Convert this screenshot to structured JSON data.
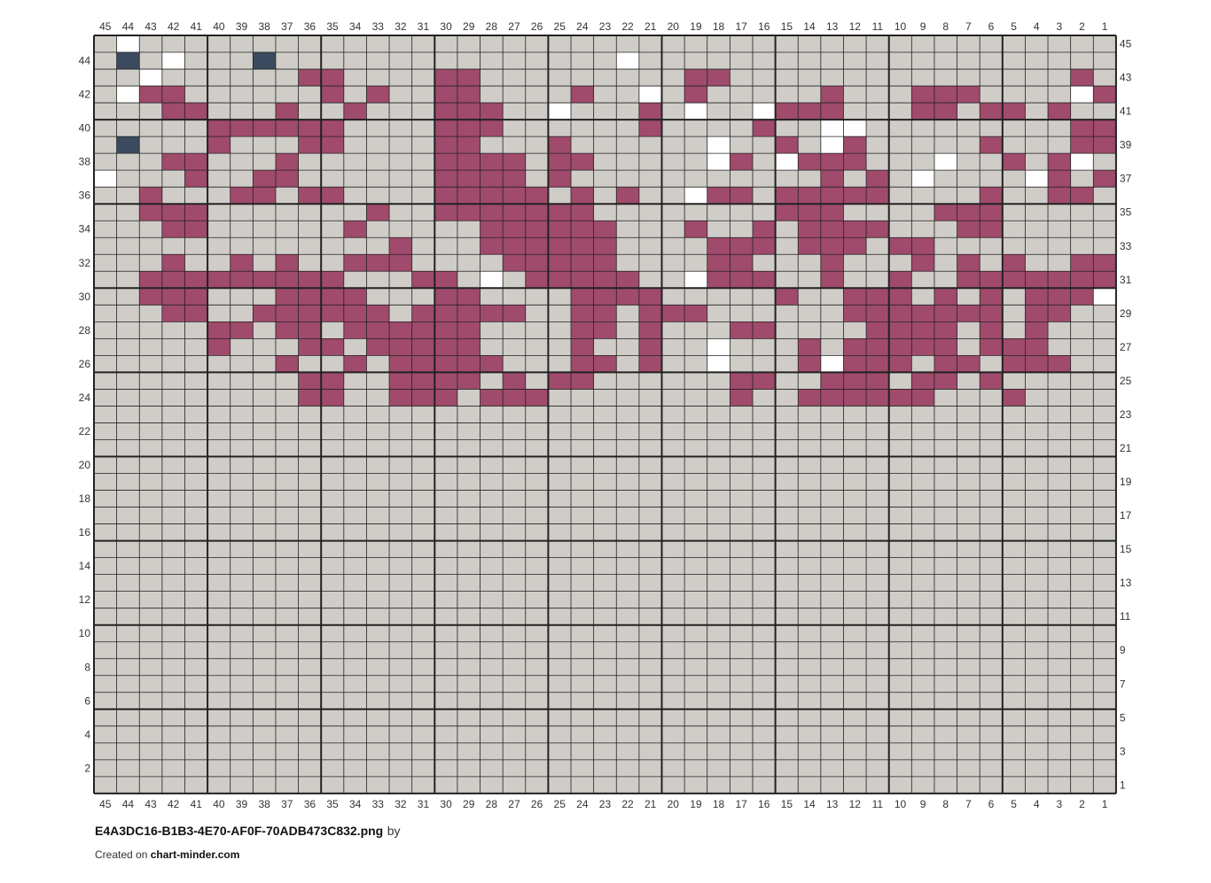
{
  "chart": {
    "columns": 45,
    "rows": 45,
    "col_numbering": "right-to-left",
    "row_numbering": "bottom-to-top",
    "colors": {
      "B": "#d0cdc8",
      "M": "#a04a6c",
      "W": "#ffffff",
      "N": "#3b4a5e"
    },
    "grid_line_color": "#222222",
    "major_line_every": 5,
    "axis_label_color": "#333333",
    "row_cells": [
      "BWBBBBBBBBBBBBBBBBBBBBBBBBBBBBBBBBBBBBBBBBBBB",
      "BNBWBBBNBBBBBBBBBBBBBBBWBBBBBBBBBBBBBBBBBBBBB",
      "BBWBBBBBBMMBBBBMMBBBBBBBBBMMBBBBBBBBBBBBBBBMB",
      "BWMMBBBBBBMBMBBMMBBBBMBBWBMBBBBBMBBBMMMBBBBWM",
      "BBBMMBBBMBBMBBBMMMBBWBBBMBWBBWMMMBBBMMBMMBMBB",
      "BBBBBMMMMMMBBBBMMMBBBBBBMBBBBMBBWWBBBBBBBBBMM",
      "BNBBBMBBBMMBBBBMMBBBMBBBBBBWBBMBWMBBBBBMBBBMM",
      "BBBMMBBBMBBBBBBMMMMBMMBBBBBWMBWMMMBBBWBBMBMWB",
      "WBBBMBBMMBBBBBBMMMMBMBBBBBBBBBBBMBMBWBBBBWMBM",
      "BBMBBBMMBMMBBBBMMMMMBMBMBBWMMBMMMMMBBBBMBBMMB",
      "BBMMMBBBBBBBMBBMMMMMMMBBBBBBBBMMMBBBBMMMBBBBB",
      "BBBMMBBBBBBMBBBBBMMMMMMBBBMBBMBMMMMBBBMMBBBBB",
      "BBBBBBBBBBBBBMBBBMMMMMMBBBBMMMBMMMBMMBBBBBBBB",
      "BBBMBBMBMBBMMMBBBBMMMMMBBBBMMBBBMBBBMBMBMBBMM",
      "BBMMMMMMMMMBBBMMBWBMMMMMBBWMMMBBMBBMBBMMMMMMM",
      "BBMMMBBBMMMMBBBMMBBBBMMMMBBBBBMBBMMMBMBMBMMMW",
      "BBBMMBBMMMMMMBMMMMMBBMMBMMMBBBBBBMMMMMMMBMMBB",
      "BBBBBMMBMMBMMMMMMBBBBMMBMBBBMMBBBBMMMMBMBMBBB",
      "BBBBBMBBBMMBMMMMMBBBBMBBMBBWBBBMBMMMMMBMMMBBB",
      "BBBBBBBBMBBMBMMMMMBBBMMBMBBWBBBMWMMMBMMBMMMBB",
      "BBBBBBBBBMMBBMMMMBMBMMBBBBBBMMBBMMMBMMBMBBBBB",
      "BBBBBBBBBMMBBMMMBMMMBBBBBBBBMBBMMMMMMBBBMBBBB",
      "BBBBBBBBBBBBBBBBBBBBBBBBBBBBBBBBBBBBBBBBBBBBB",
      "BBBBBBBBBBBBBBBBBBBBBBBBBBBBBBBBBBBBBBBBBBBBB",
      "BBBBBBBBBBBBBBBBBBBBBBBBBBBBBBBBBBBBBBBBBBBBB",
      "BBBBBBBBBBBBBBBBBBBBBBBBBBBBBBBBBBBBBBBBBBBBB",
      "BBBBBBBBBBBBBBBBBBBBBBBBBBBBBBBBBBBBBBBBBBBBB",
      "BBBBBBBBBBBBBBBBBBBBBBBBBBBBBBBBBBBBBBBBBBBBB",
      "BBBBBBBBBBBBBBBBBBBBBBBBBBBBBBBBBBBBBBBBBBBBB",
      "BBBBBBBBBBBBBBBBBBBBBBBBBBBBBBBBBBBBBBBBBBBBB",
      "BBBBBBBBBBBBBBBBBBBBBBBBBBBBBBBBBBBBBBBBBBBBB",
      "BBBBBBBBBBBBBBBBBBBBBBBBBBBBBBBBBBBBBBBBBBBBB",
      "BBBBBBBBBBBBBBBBBBBBBBBBBBBBBBBBBBBBBBBBBBBBB",
      "BBBBBBBBBBBBBBBBBBBBBBBBBBBBBBBBBBBBBBBBBBBBB",
      "BBBBBBBBBBBBBBBBBBBBBBBBBBBBBBBBBBBBBBBBBBBBB",
      "BBBBBBBBBBBBBBBBBBBBBBBBBBBBBBBBBBBBBBBBBBBBB",
      "BBBBBBBBBBBBBBBBBBBBBBBBBBBBBBBBBBBBBBBBBBBBB",
      "BBBBBBBBBBBBBBBBBBBBBBBBBBBBBBBBBBBBBBBBBBBBB",
      "BBBBBBBBBBBBBBBBBBBBBBBBBBBBBBBBBBBBBBBBBBBBB",
      "BBBBBBBBBBBBBBBBBBBBBBBBBBBBBBBBBBBBBBBBBBBBB",
      "BBBBBBBBBBBBBBBBBBBBBBBBBBBBBBBBBBBBBBBBBBBBB",
      "BBBBBBBBBBBBBBBBBBBBBBBBBBBBBBBBBBBBBBBBBBBBB",
      "BBBBBBBBBBBBBBBBBBBBBBBBBBBBBBBBBBBBBBBBBBBBB",
      "BBBBBBBBBBBBBBBBBBBBBBBBBBBBBBBBBBBBBBBBBBBBB",
      "BBBBBBBBBBBBBBBBBBBBBBBBBBBBBBBBBBBBBBBBBBBBB"
    ]
  },
  "footer": {
    "filename": "E4A3DC16-B1B3-4E70-AF0F-70ADB473C832.png",
    "by": "by",
    "created_prefix": "Created on",
    "site": "chart-minder.com"
  }
}
